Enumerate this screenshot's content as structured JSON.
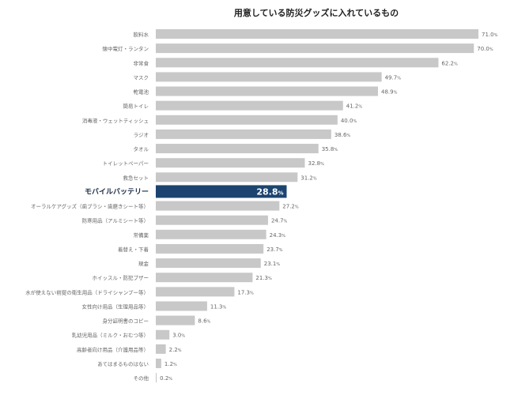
{
  "chart_data": {
    "type": "bar",
    "orientation": "horizontal",
    "title": "用意している防災グッズに入れているもの",
    "unit": "%",
    "xlim": [
      0,
      71
    ],
    "grid": false,
    "highlight_index": 11,
    "colors": {
      "bar": "#c8c8c8",
      "highlight": "#1d4470",
      "label": "#666666",
      "highlight_label": "#1a2a44"
    },
    "categories": [
      "飲料水",
      "懐中電灯・ランタン",
      "非常食",
      "マスク",
      "乾電池",
      "簡易トイレ",
      "消毒液・ウェットティッシュ",
      "ラジオ",
      "タオル",
      "トイレットペーパー",
      "救急セット",
      "モバイルバッテリー",
      "オーラルケアグッズ（歯ブラシ・歯磨きシート等）",
      "防寒用品（アルミシート等）",
      "常備薬",
      "着替え・下着",
      "現金",
      "ホイッスル・防犯ブザー",
      "水が使えない前提の衛生用品（ドライシャンプー等）",
      "女性向け用品（生理用品等）",
      "身分証明書のコピー",
      "乳幼児用品（ミルク・おむつ等）",
      "高齢者向け用品（介護用品等）",
      "あてはまるものはない",
      "その他"
    ],
    "values": [
      71.0,
      70.0,
      62.2,
      49.7,
      48.9,
      41.2,
      40.0,
      38.6,
      35.8,
      32.8,
      31.2,
      28.8,
      27.2,
      24.7,
      24.3,
      23.7,
      23.1,
      21.3,
      17.3,
      11.3,
      8.6,
      3.0,
      2.2,
      1.2,
      0.2
    ]
  }
}
